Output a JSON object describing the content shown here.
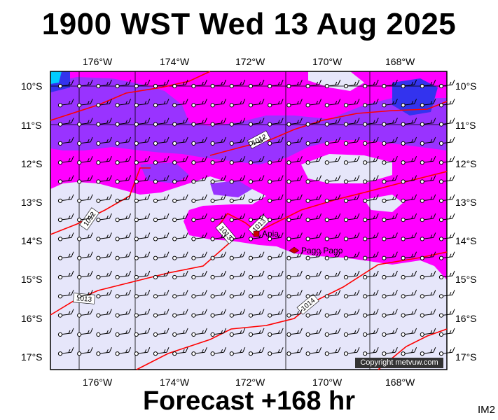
{
  "title": "1900 WST Wed 13 Aug 2025",
  "forecast_label": "Forecast +168 hr",
  "corner_label": "IM2",
  "copyright": "Copyright metvuw.com",
  "longitude_labels": [
    "176°W",
    "174°W",
    "172°W",
    "170°W",
    "168°W"
  ],
  "latitude_labels": [
    "10°S",
    "11°S",
    "12°S",
    "13°S",
    "14°S",
    "15°S",
    "16°S",
    "17°S"
  ],
  "isobar_labels": [
    "1012",
    "1012",
    "1013",
    "1013",
    "1013",
    "1014"
  ],
  "places": [
    {
      "name": "Apia"
    },
    {
      "name": "Pago Pago"
    }
  ],
  "colors": {
    "background_field": "#e6e6fa",
    "magenta": "#ff00ff",
    "purple": "#9933ff",
    "blue": "#3333ee",
    "cyan": "#00ccff",
    "isobar": "#ff0000"
  }
}
